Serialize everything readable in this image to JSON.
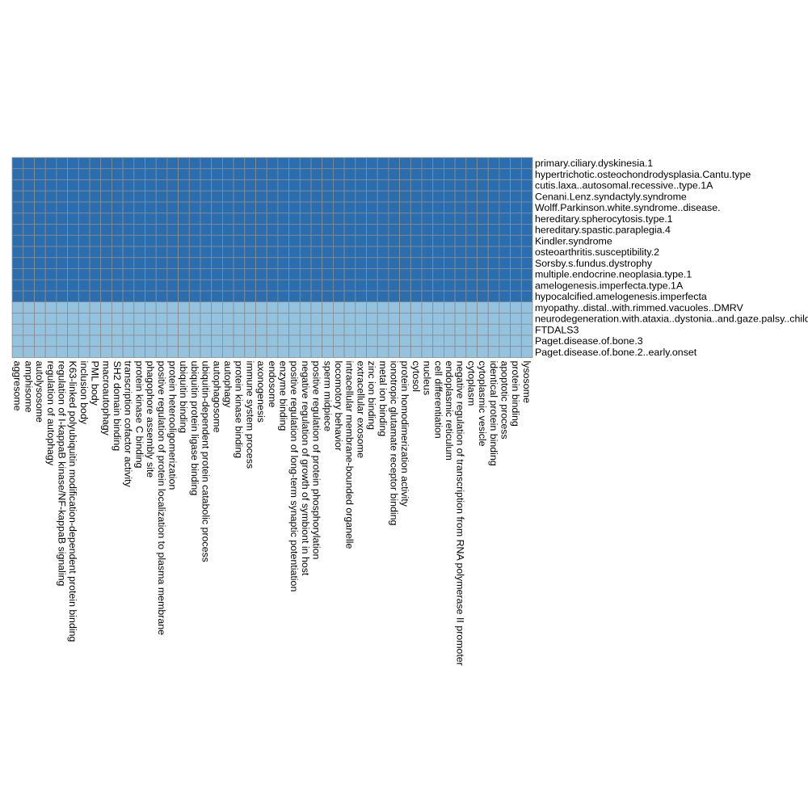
{
  "chart_data": {
    "type": "heatmap",
    "title": "",
    "xlabel": "",
    "ylabel": "",
    "legend": "none",
    "grid": true,
    "colors": {
      "high": "#2b6eb0",
      "low": "#94c3df",
      "gridline": "#8c8c8c",
      "text": "#000000"
    },
    "rows": [
      "primary.ciliary.dyskinesia.1",
      "hypertrichotic.osteochondrodysplasia.Cantu.type",
      "cutis.laxa..autosomal.recessive..type.1A",
      "Cenani.Lenz.syndactyly.syndrome",
      "Wolff.Parkinson.white.syndrome..disease.",
      "hereditary.spherocytosis.type.1",
      "hereditary.spastic.paraplegia.4",
      "Kindler.syndrome",
      "osteoarthritis.susceptibility.2",
      "Sorsby.s.fundus.dystrophy",
      "multiple.endocrine.neoplasia.type.1",
      "amelogenesis.imperfecta.type.1A",
      "hypocalcified.amelogenesis.imperfecta",
      "myopathy..distal..with.rimmed.vacuoles..DMRV",
      "neurodegeneration.with.ataxia..dystonia..and.gaze.palsy..childhood.onset",
      "FTDALS3",
      "Paget.disease.of.bone.3",
      "Paget.disease.of.bone.2..early.onset"
    ],
    "columns": [
      "aggresome",
      "amphisome",
      "autolysosome",
      "regulation of autophagy",
      "regulation of I-kappaB kinase/NF-kappaB signaling",
      "K63-linked polyubiquitin modification-dependent protein binding",
      "inclusion body",
      "PML body",
      "macroautophagy",
      "SH2 domain binding",
      "transcription cofactor activity",
      "protein kinase C binding",
      "phagophore assembly site",
      "positive regulation of protein localization to plasma membrane",
      "protein heterooligomerization",
      "ubiquitin binding",
      "ubiquitin protein ligase binding",
      "ubiquitin-dependent protein catabolic process",
      "autophagosome",
      "autophagy",
      "protein kinase binding",
      "immune system process",
      "axonogenesis",
      "endosome",
      "enzyme binding",
      "positive regulation of long-term synaptic potentiation",
      "negative regulation of growth of symbiont in host",
      "positive regulation of protein phosphorylation",
      "sperm midpiece",
      "locomotory behavior",
      "intracellular membrane-bounded organelle",
      "extracellular exosome",
      "zinc ion binding",
      "metal ion binding",
      "ionotropic glutamate receptor binding",
      "protein homodimerization activity",
      "cytosol",
      "nucleus",
      "cell differentiation",
      "endoplasmic reticulum",
      "negative regulation of transcription from RNA polymerase II promoter",
      "cytoplasm",
      "cytoplasmic vesicle",
      "identical protein binding",
      "apoptotic process",
      "protein binding",
      "lysosome"
    ],
    "row_values": [
      1,
      1,
      1,
      1,
      1,
      1,
      1,
      1,
      1,
      1,
      1,
      1,
      1,
      0,
      0,
      0,
      0,
      0
    ]
  }
}
